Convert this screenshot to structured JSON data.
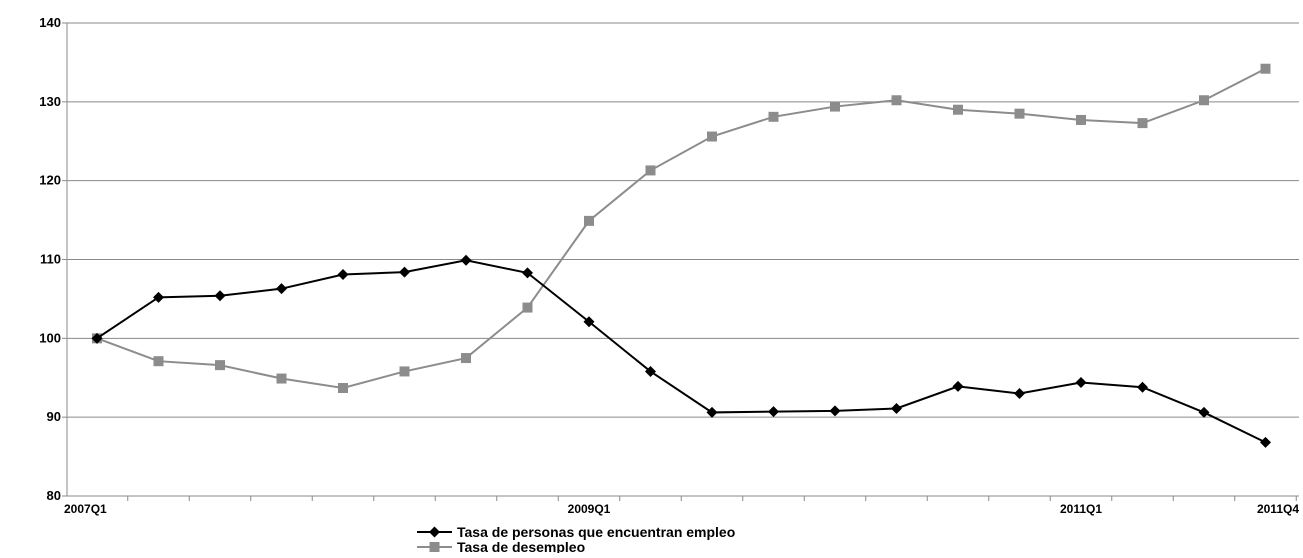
{
  "chart_data": {
    "type": "line",
    "x": [
      "2007Q1",
      "2007Q2",
      "2007Q3",
      "2007Q4",
      "2008Q1",
      "2008Q2",
      "2008Q3",
      "2008Q4",
      "2009Q1",
      "2009Q2",
      "2009Q3",
      "2009Q4",
      "2010Q1",
      "2010Q2",
      "2010Q3",
      "2010Q4",
      "2011Q1",
      "2011Q2",
      "2011Q3",
      "2011Q4"
    ],
    "x_tick_labels": [
      "2007Q1",
      "2009Q1",
      "2011Q1",
      "2011Q4"
    ],
    "ylim": [
      80,
      140
    ],
    "y_ticks": [
      80,
      90,
      100,
      110,
      120,
      130,
      140
    ],
    "grid": true,
    "legend_position": "bottom",
    "series": [
      {
        "name": "Tasa de personas que encuentran empleo",
        "color": "#000000",
        "marker": "diamond",
        "values": [
          100,
          105.2,
          105.4,
          106.3,
          108.1,
          108.4,
          109.9,
          108.3,
          102.1,
          95.8,
          90.6,
          90.7,
          90.8,
          91.1,
          93.9,
          93.0,
          94.4,
          93.8,
          90.6,
          86.8
        ]
      },
      {
        "name": "Tasa de desempleo",
        "color": "#8c8c8c",
        "marker": "square",
        "values": [
          100,
          97.1,
          96.6,
          94.9,
          93.7,
          95.8,
          97.5,
          103.9,
          114.9,
          121.3,
          125.6,
          128.1,
          129.4,
          130.2,
          129.0,
          128.5,
          127.7,
          127.3,
          130.2,
          134.2
        ]
      }
    ]
  }
}
